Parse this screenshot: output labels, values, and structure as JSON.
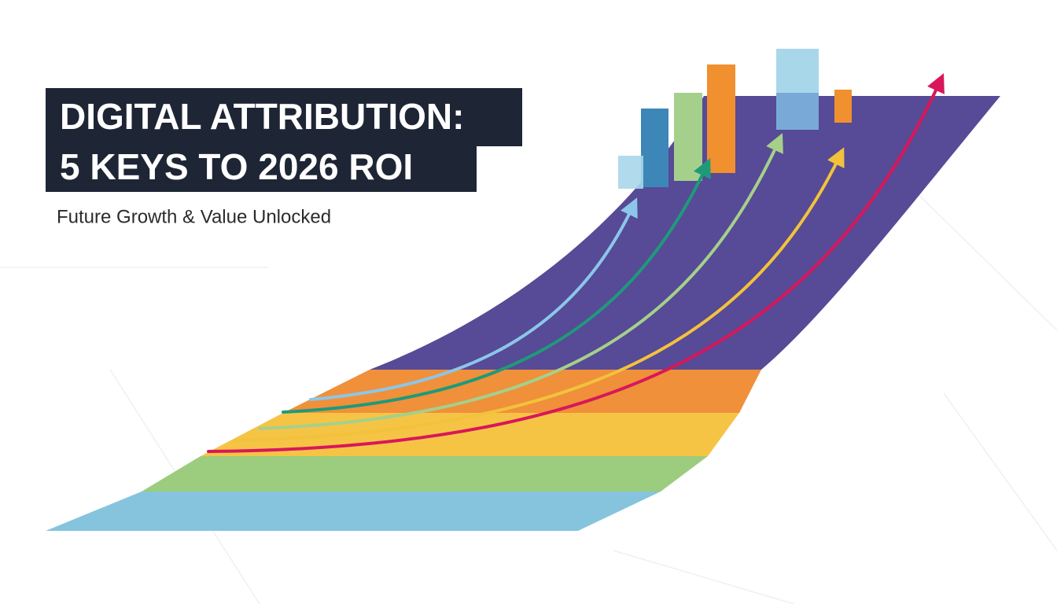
{
  "header": {
    "title_lines": [
      "DIGITAL ATTRIBUTION:",
      "5 KEYS TO 2026 ROI"
    ],
    "subtitle": "Future Growth & Value Unlocked"
  }
}
